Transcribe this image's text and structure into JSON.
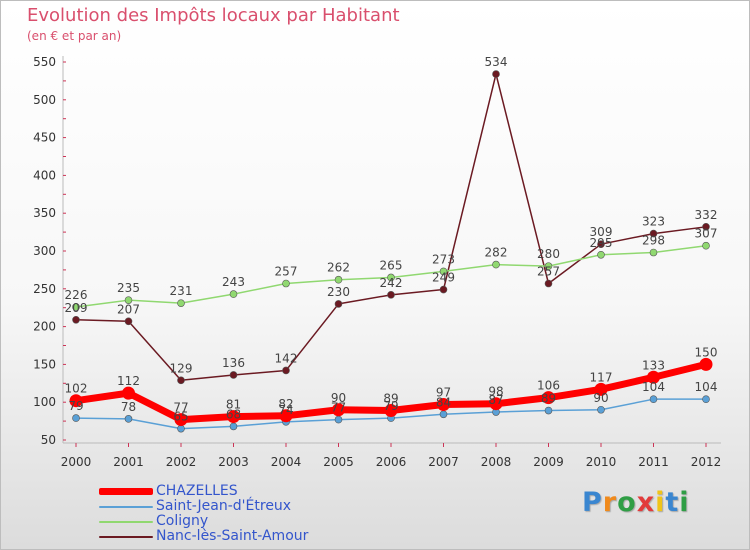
{
  "title": "Evolution des Impôts locaux par Habitant",
  "subtitle": "(en € et par an)",
  "logo_text": "Proxiti",
  "chart_data": {
    "type": "line",
    "title": "Evolution des Impôts locaux par Habitant",
    "subtitle": "(en € et par an)",
    "x": [
      "2000",
      "2001",
      "2002",
      "2003",
      "2004",
      "2005",
      "2006",
      "2007",
      "2008",
      "2009",
      "2010",
      "2011",
      "2012"
    ],
    "y_ticks": [
      "50",
      "100",
      "150",
      "200",
      "250",
      "300",
      "350",
      "400",
      "450",
      "500",
      "550"
    ],
    "ylim": [
      50,
      550
    ],
    "grid": false,
    "legend_position": "bottom-left",
    "series": [
      {
        "name": "CHAZELLES",
        "color": "#ff0000",
        "values": [
          102,
          112,
          77,
          81,
          82,
          90,
          89,
          97,
          98,
          106,
          117,
          133,
          150
        ]
      },
      {
        "name": "Saint-Jean-d'Étreux",
        "color": "#5aa0d6",
        "values": [
          79,
          78,
          65,
          68,
          74,
          77,
          79,
          84,
          87,
          89,
          90,
          104,
          104
        ]
      },
      {
        "name": "Coligny",
        "color": "#90d870",
        "values": [
          226,
          235,
          231,
          243,
          257,
          262,
          265,
          273,
          282,
          280,
          295,
          298,
          307
        ]
      },
      {
        "name": "Nanc-lès-Saint-Amour",
        "color": "#6b1a22",
        "values": [
          209,
          207,
          129,
          136,
          142,
          230,
          242,
          249,
          534,
          257,
          309,
          323,
          332
        ]
      }
    ]
  }
}
